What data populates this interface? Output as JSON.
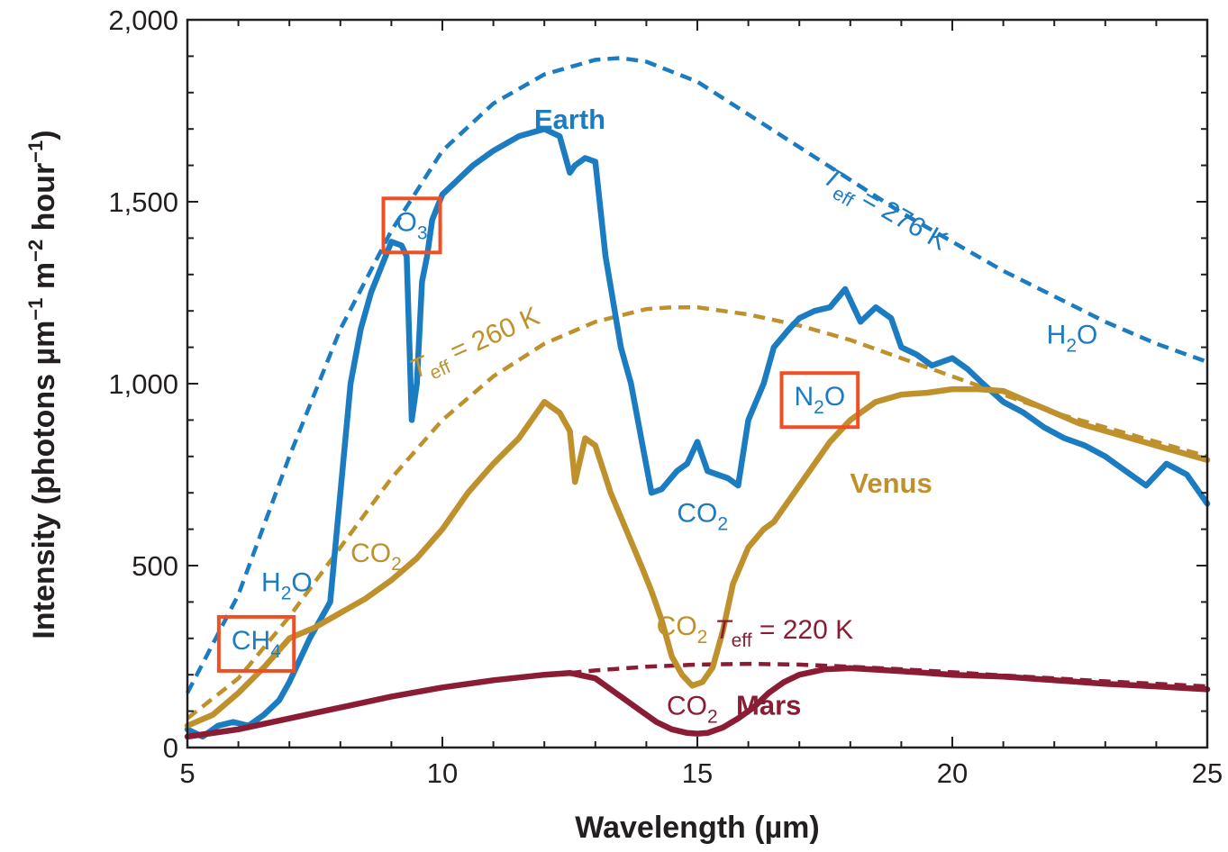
{
  "chart_data": {
    "type": "line",
    "xlabel": "Wavelength (µm)",
    "ylabel_parts": [
      "Intensity (photons µm",
      "−1",
      " m",
      "−2",
      " hour",
      "−1",
      ")"
    ],
    "xlim": [
      5,
      25
    ],
    "ylim": [
      0,
      2000
    ],
    "x_ticks": [
      5,
      10,
      15,
      20,
      25
    ],
    "x_tick_labels": [
      "5",
      "10",
      "15",
      "20",
      "25"
    ],
    "y_ticks": [
      0,
      500,
      1000,
      1500,
      2000
    ],
    "y_tick_labels": [
      "0",
      "500",
      "1,000",
      "1,500",
      "2,000"
    ],
    "grid": false,
    "colors": {
      "earth": "#1c7cc2",
      "venus": "#bf912c",
      "mars": "#8a1c34",
      "highlight": "#ef4f23",
      "axis": "#231f20"
    },
    "series": [
      {
        "name": "Earth",
        "color": "#1c7cc2",
        "style": "solid",
        "x": [
          5,
          5.3,
          5.6,
          5.9,
          6.2,
          6.5,
          6.8,
          7.0,
          7.2,
          7.4,
          7.6,
          7.8,
          8.0,
          8.2,
          8.4,
          8.6,
          8.8,
          9.0,
          9.2,
          9.3,
          9.4,
          9.5,
          9.6,
          9.7,
          9.8,
          10.0,
          10.3,
          10.6,
          11.0,
          11.5,
          12.0,
          12.3,
          12.5,
          12.6,
          12.8,
          13.0,
          13.2,
          13.5,
          13.7,
          13.9,
          14.1,
          14.3,
          14.6,
          14.8,
          15.0,
          15.2,
          15.4,
          15.6,
          15.8,
          16.0,
          16.3,
          16.5,
          16.8,
          17.0,
          17.3,
          17.6,
          17.9,
          18.2,
          18.5,
          18.8,
          19.0,
          19.3,
          19.6,
          20.0,
          20.3,
          20.6,
          21.0,
          21.4,
          21.8,
          22.2,
          22.6,
          23.0,
          23.4,
          23.8,
          24.2,
          24.6,
          25
        ],
        "y": [
          50,
          30,
          60,
          70,
          60,
          90,
          130,
          180,
          240,
          300,
          350,
          400,
          700,
          1000,
          1150,
          1250,
          1320,
          1390,
          1380,
          1350,
          900,
          1000,
          1280,
          1350,
          1450,
          1520,
          1560,
          1600,
          1640,
          1680,
          1700,
          1680,
          1580,
          1600,
          1620,
          1610,
          1350,
          1100,
          1000,
          850,
          700,
          710,
          760,
          780,
          840,
          760,
          750,
          740,
          720,
          900,
          1000,
          1100,
          1150,
          1180,
          1200,
          1210,
          1260,
          1170,
          1210,
          1180,
          1100,
          1080,
          1050,
          1070,
          1040,
          1000,
          950,
          920,
          880,
          850,
          830,
          800,
          760,
          720,
          780,
          750,
          670
        ]
      },
      {
        "name": "Venus",
        "color": "#bf912c",
        "style": "solid",
        "x": [
          5,
          5.5,
          6.0,
          6.5,
          7.0,
          7.5,
          8.0,
          8.5,
          9.0,
          9.5,
          10.0,
          10.5,
          11.0,
          11.5,
          12.0,
          12.3,
          12.5,
          12.6,
          12.8,
          13.0,
          13.3,
          13.6,
          13.9,
          14.1,
          14.3,
          14.5,
          14.7,
          14.9,
          15.1,
          15.3,
          15.5,
          15.7,
          16.0,
          16.3,
          16.5,
          16.8,
          17.0,
          17.3,
          17.6,
          18.0,
          18.5,
          19.0,
          19.5,
          20.0,
          20.5,
          21.0,
          21.5,
          22.0,
          22.5,
          23.0,
          23.5,
          24.0,
          24.5,
          25
        ],
        "y": [
          60,
          90,
          150,
          220,
          300,
          330,
          370,
          410,
          460,
          520,
          600,
          700,
          780,
          850,
          950,
          920,
          870,
          730,
          850,
          830,
          700,
          600,
          500,
          430,
          350,
          250,
          200,
          170,
          180,
          220,
          320,
          450,
          550,
          600,
          620,
          680,
          720,
          780,
          840,
          900,
          950,
          970,
          975,
          985,
          985,
          980,
          950,
          920,
          890,
          870,
          850,
          830,
          810,
          790
        ]
      },
      {
        "name": "Mars",
        "color": "#8a1c34",
        "style": "solid",
        "x": [
          5,
          6,
          7,
          8,
          9,
          10,
          11,
          12,
          12.5,
          13.0,
          13.3,
          13.6,
          13.9,
          14.2,
          14.5,
          14.8,
          15.0,
          15.2,
          15.5,
          15.8,
          16.1,
          16.4,
          16.7,
          17.0,
          17.5,
          18.0,
          19.0,
          20.0,
          21.0,
          22.0,
          23.0,
          24.0,
          25
        ],
        "y": [
          30,
          50,
          80,
          110,
          140,
          165,
          185,
          200,
          205,
          190,
          160,
          130,
          100,
          70,
          50,
          40,
          38,
          40,
          55,
          80,
          110,
          150,
          180,
          200,
          215,
          218,
          210,
          200,
          195,
          185,
          175,
          168,
          160
        ]
      },
      {
        "name": "Teff = 276 K",
        "color": "#1c7cc2",
        "style": "dashed",
        "x": [
          5,
          6,
          7,
          8,
          9,
          10,
          11,
          12,
          13,
          13.5,
          14,
          15,
          16,
          17,
          18,
          19,
          20,
          21,
          22,
          23,
          24,
          25
        ],
        "y": [
          150,
          420,
          800,
          1150,
          1420,
          1640,
          1770,
          1850,
          1890,
          1895,
          1885,
          1830,
          1740,
          1650,
          1560,
          1470,
          1390,
          1310,
          1240,
          1170,
          1110,
          1060
        ]
      },
      {
        "name": "Teff = 260 K",
        "color": "#bf912c",
        "style": "dashed",
        "x": [
          5,
          6,
          7,
          8,
          9,
          10,
          11,
          12,
          13,
          14,
          14.5,
          15,
          16,
          17,
          18,
          19,
          20,
          21,
          22,
          23,
          24,
          25
        ],
        "y": [
          80,
          190,
          360,
          550,
          740,
          900,
          1020,
          1110,
          1170,
          1205,
          1210,
          1210,
          1190,
          1160,
          1120,
          1070,
          1020,
          970,
          920,
          880,
          840,
          800
        ]
      },
      {
        "name": "Teff = 220 K",
        "color": "#8a1c34",
        "style": "dashed",
        "x": [
          12.5,
          13,
          14,
          15,
          16,
          17,
          18,
          19,
          20,
          21,
          22,
          23,
          24,
          25
        ],
        "y": [
          205,
          212,
          222,
          228,
          230,
          228,
          222,
          215,
          207,
          198,
          190,
          182,
          175,
          168
        ]
      }
    ],
    "annotations": [
      {
        "id": "earth",
        "text": "Earth",
        "x": 12.5,
        "y": 1700,
        "color": "#1c7cc2",
        "weight": "bold"
      },
      {
        "id": "venus",
        "text": "Venus",
        "x": 18.8,
        "y": 700,
        "color": "#bf912c",
        "weight": "bold"
      },
      {
        "id": "mars",
        "text": "Mars",
        "x": 16.4,
        "y": 90,
        "color": "#8a1c34",
        "weight": "bold"
      },
      {
        "id": "o3",
        "text": "O",
        "sub": "3",
        "x": 9.4,
        "y": 1420,
        "color": "#1c7cc2",
        "boxed": true
      },
      {
        "id": "n2o",
        "text": "N",
        "sub": "2",
        "tail": "O",
        "x": 17.4,
        "y": 940,
        "color": "#1c7cc2",
        "boxed": true
      },
      {
        "id": "ch4",
        "text": "CH",
        "sub": "4",
        "x": 6.35,
        "y": 270,
        "color": "#1c7cc2",
        "boxed": true
      },
      {
        "id": "h2o-left",
        "text": "H",
        "sub": "2",
        "tail": "O",
        "x": 6.95,
        "y": 430,
        "color": "#1c7cc2"
      },
      {
        "id": "h2o-right",
        "text": "H",
        "sub": "2",
        "tail": "O",
        "x": 22.35,
        "y": 1110,
        "color": "#1c7cc2"
      },
      {
        "id": "co2-earth",
        "text": "CO",
        "sub": "2",
        "x": 15.1,
        "y": 620,
        "color": "#1c7cc2"
      },
      {
        "id": "co2-venus",
        "text": "CO",
        "sub": "2",
        "x": 8.7,
        "y": 510,
        "color": "#bf912c"
      },
      {
        "id": "co2-venus-15",
        "text": "CO",
        "sub": "2",
        "x": 14.7,
        "y": 310,
        "color": "#bf912c"
      },
      {
        "id": "co2-mars",
        "text": "CO",
        "sub": "2",
        "x": 14.9,
        "y": 90,
        "color": "#8a1c34"
      },
      {
        "id": "teff276",
        "text": "T",
        "sub": "eff",
        "tail": " = 276 K",
        "x": 18.6,
        "y": 1460,
        "color": "#1c7cc2",
        "italicFirst": true,
        "rotate": 30
      },
      {
        "id": "teff260",
        "text": "T",
        "sub": "eff",
        "tail": " = 260 K",
        "x": 10.7,
        "y": 1090,
        "color": "#bf912c",
        "italicFirst": true,
        "rotate": -24
      },
      {
        "id": "teff220",
        "text": "T",
        "sub": "eff",
        "tail": " = 220 K",
        "x": 16.7,
        "y": 300,
        "color": "#8a1c34",
        "italicFirst": true
      }
    ]
  }
}
